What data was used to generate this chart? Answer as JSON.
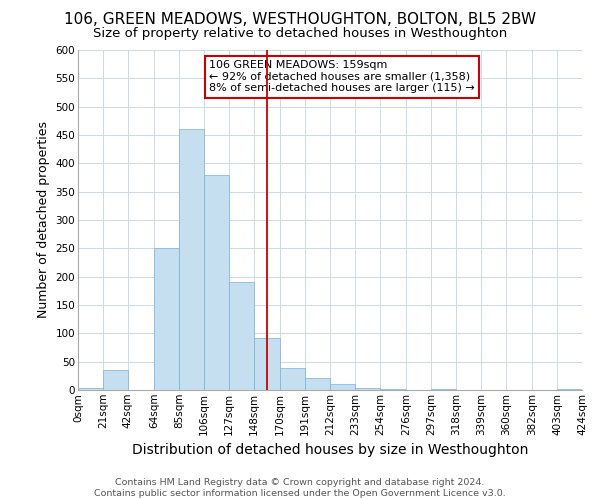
{
  "title": "106, GREEN MEADOWS, WESTHOUGHTON, BOLTON, BL5 2BW",
  "subtitle": "Size of property relative to detached houses in Westhoughton",
  "xlabel": "Distribution of detached houses by size in Westhoughton",
  "ylabel": "Number of detached properties",
  "footer_line1": "Contains HM Land Registry data © Crown copyright and database right 2024.",
  "footer_line2": "Contains public sector information licensed under the Open Government Licence v3.0.",
  "bin_labels": [
    "0sqm",
    "21sqm",
    "42sqm",
    "64sqm",
    "85sqm",
    "106sqm",
    "127sqm",
    "148sqm",
    "170sqm",
    "191sqm",
    "212sqm",
    "233sqm",
    "254sqm",
    "276sqm",
    "297sqm",
    "318sqm",
    "339sqm",
    "360sqm",
    "382sqm",
    "403sqm",
    "424sqm"
  ],
  "bin_edges": [
    0,
    21,
    42,
    64,
    85,
    106,
    127,
    148,
    170,
    191,
    212,
    233,
    254,
    276,
    297,
    318,
    339,
    360,
    382,
    403,
    424
  ],
  "bar_heights": [
    3,
    35,
    0,
    250,
    460,
    380,
    190,
    92,
    38,
    22,
    10,
    3,
    1,
    0,
    1,
    0,
    0,
    0,
    0,
    1
  ],
  "bar_color": "#c6dff0",
  "bar_edge_color": "#7ab3d4",
  "vline_x": 159,
  "vline_color": "#cc0000",
  "annotation_text": "106 GREEN MEADOWS: 159sqm\n← 92% of detached houses are smaller (1,358)\n8% of semi-detached houses are larger (115) →",
  "annotation_box_color": "#ffffff",
  "annotation_box_edge": "#cc0000",
  "ylim": [
    0,
    600
  ],
  "yticks": [
    0,
    50,
    100,
    150,
    200,
    250,
    300,
    350,
    400,
    450,
    500,
    550,
    600
  ],
  "background_color": "#ffffff",
  "grid_color": "#cdd8ea",
  "title_fontsize": 11,
  "subtitle_fontsize": 9.5,
  "xlabel_fontsize": 10,
  "ylabel_fontsize": 9,
  "tick_fontsize": 7.5,
  "annotation_fontsize": 8,
  "footer_fontsize": 6.8
}
